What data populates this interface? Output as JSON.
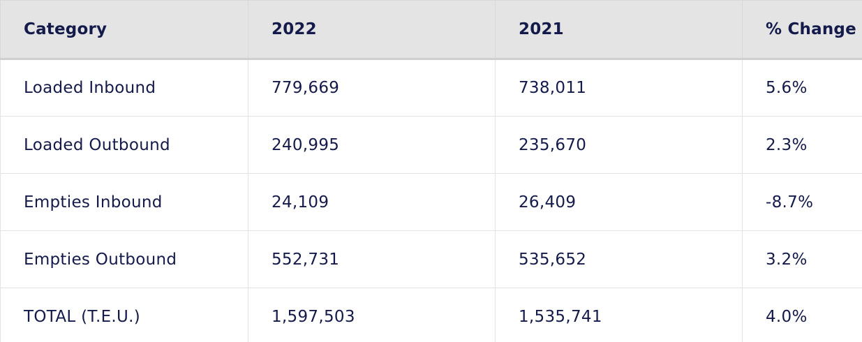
{
  "table": {
    "headers": [
      "Category",
      "2022",
      "2021",
      "% Change"
    ],
    "rows": [
      [
        "Loaded Inbound",
        "779,669",
        "738,011",
        "5.6%"
      ],
      [
        "Loaded Outbound",
        "240,995",
        "235,670",
        "2.3%"
      ],
      [
        "Empties Inbound",
        "24,109",
        "26,409",
        "-8.7%"
      ],
      [
        "Empties Outbound",
        "552,731",
        "535,652",
        "3.2%"
      ],
      [
        "TOTAL (T.E.U.)",
        "1,597,503",
        "1,535,741",
        "4.0%"
      ]
    ]
  },
  "colors": {
    "text": "#141a4a",
    "header_background": "#e4e4e4",
    "border": "#e3e3e3"
  }
}
